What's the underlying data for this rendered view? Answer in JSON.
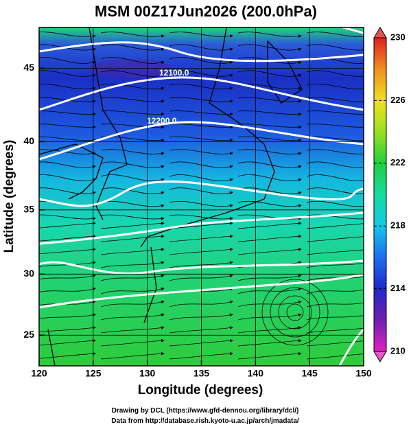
{
  "title": "MSM 00Z17Jun2026 (200.0hPa)",
  "x_axis": {
    "label": "Longitude (degrees)",
    "lim": [
      120,
      150
    ],
    "ticks": [
      120,
      125,
      130,
      135,
      140,
      145,
      150
    ]
  },
  "y_axis": {
    "label": "Latitude  (degrees)",
    "lim": [
      22.4,
      47.6
    ],
    "ticks": [
      25,
      30,
      35,
      40,
      45
    ]
  },
  "colorbar": {
    "lim": [
      210,
      230
    ],
    "ticks": [
      210,
      214,
      218,
      222,
      226,
      230
    ]
  },
  "contour_labels": [
    "12100.0",
    "12200.0"
  ],
  "footer": [
    "Drawing by DCL (https://www.gfd-dennou.org/library/dcl/)",
    "Data from http://database.rish.kyoto-u.ac.jp/arch/jmadata/"
  ]
}
